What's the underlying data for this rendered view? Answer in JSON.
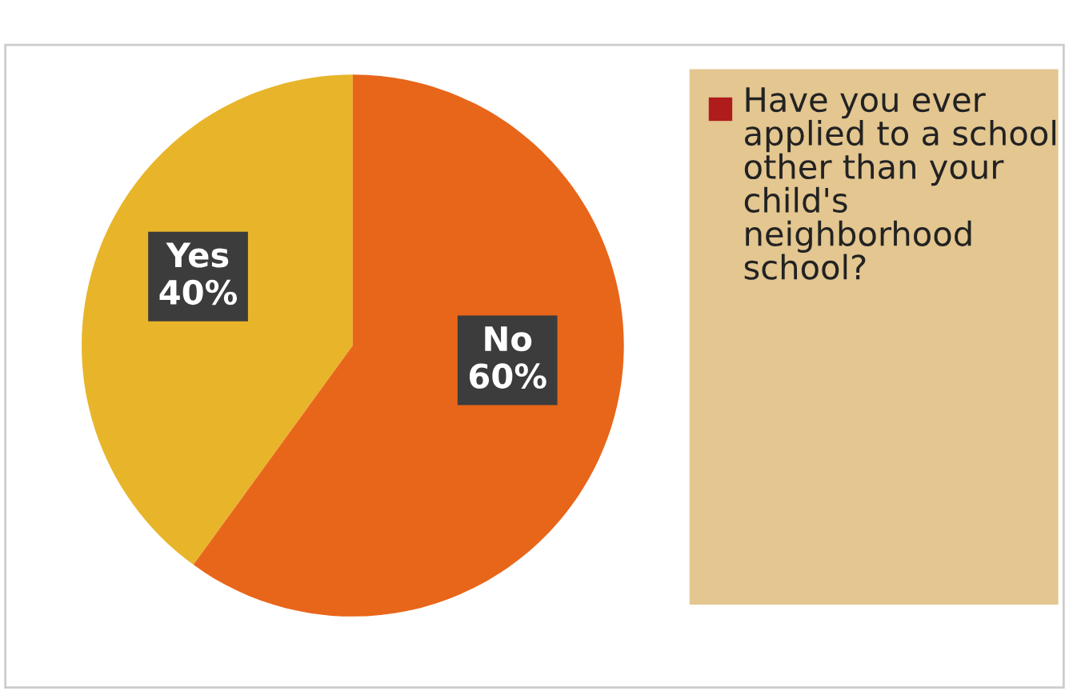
{
  "chart_data": {
    "type": "pie",
    "categories": [
      "Yes",
      "No"
    ],
    "legend": "right",
    "series": [
      {
        "name": "Have you ever applied to a school other than your child's neighborhood school?",
        "color": "#b01c1c",
        "values": [
          40,
          60
        ],
        "colors": [
          "#e8b52a",
          "#e8661a"
        ],
        "value_labels": [
          "40%",
          "60%"
        ]
      }
    ]
  }
}
